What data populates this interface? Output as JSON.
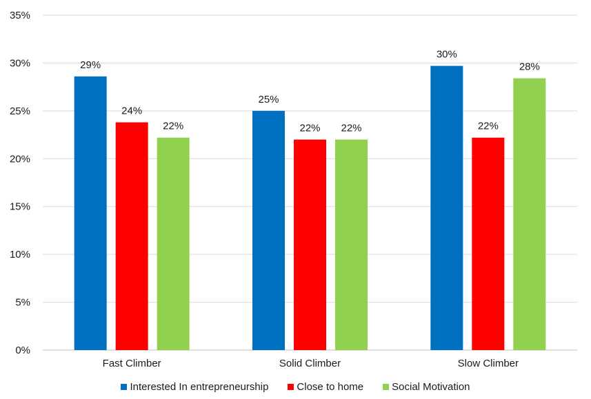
{
  "chart_data": {
    "type": "bar",
    "title": "",
    "xlabel": "",
    "ylabel": "",
    "categories": [
      "Fast Climber",
      "Solid Climber",
      "Slow Climber"
    ],
    "series": [
      {
        "name": "Interested In entrepreneurship",
        "color": "#0070c0",
        "values": [
          28.6,
          25.0,
          29.7
        ],
        "labels": [
          "29%",
          "25%",
          "30%"
        ]
      },
      {
        "name": "Close to home",
        "color": "#ff0000",
        "values": [
          23.8,
          22.0,
          22.2
        ],
        "labels": [
          "24%",
          "22%",
          "22%"
        ]
      },
      {
        "name": "Social Motivation",
        "color": "#92d050",
        "values": [
          22.2,
          22.0,
          28.4
        ],
        "labels": [
          "22%",
          "22%",
          "28%"
        ]
      }
    ],
    "ylim": [
      0,
      35
    ],
    "yticks": [
      "0%",
      "5%",
      "10%",
      "15%",
      "20%",
      "25%",
      "30%",
      "35%"
    ],
    "grid": true,
    "legend_position": "bottom"
  }
}
